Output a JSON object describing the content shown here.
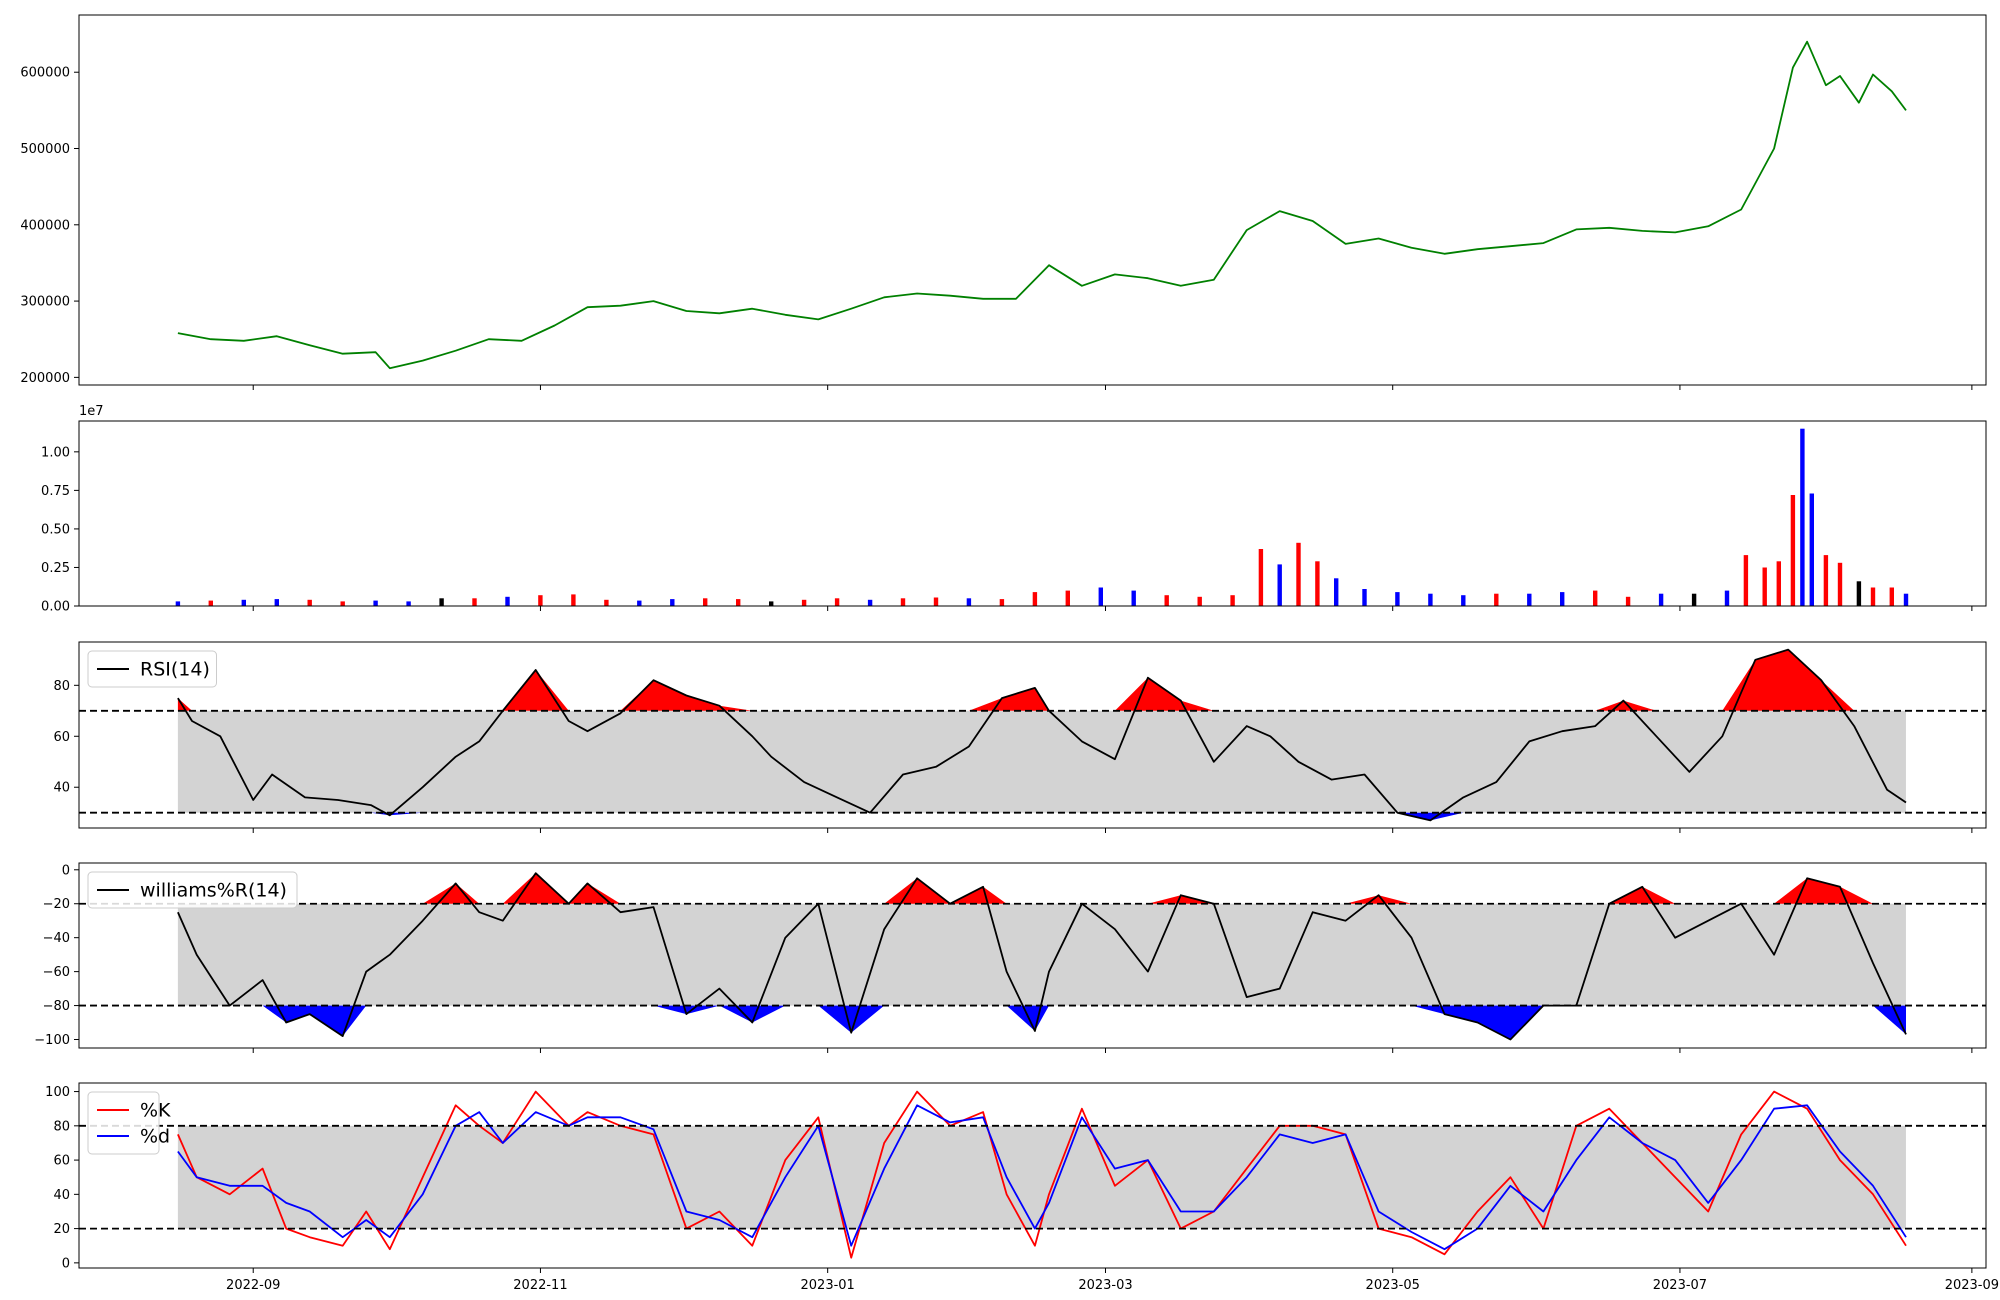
{
  "chart_data": [
    {
      "panel": "price",
      "type": "line",
      "color": "#008000",
      "ylim": [
        190000,
        675000
      ],
      "yticks": [
        200000,
        300000,
        400000,
        500000,
        600000
      ],
      "ytick_labels": [
        "200000",
        "300000",
        "400000",
        "500000",
        "600000"
      ],
      "series": [
        {
          "dates": [
            "2022-08-16",
            "2022-08-23",
            "2022-08-30",
            "2022-09-06",
            "2022-09-13",
            "2022-09-20",
            "2022-09-27",
            "2022-09-30",
            "2022-10-07",
            "2022-10-14",
            "2022-10-21",
            "2022-10-28",
            "2022-11-04",
            "2022-11-11",
            "2022-11-18",
            "2022-11-25",
            "2022-12-02",
            "2022-12-09",
            "2022-12-16",
            "2022-12-23",
            "2022-12-30",
            "2023-01-06",
            "2023-01-13",
            "2023-01-20",
            "2023-01-27",
            "2023-02-03",
            "2023-02-10",
            "2023-02-17",
            "2023-02-24",
            "2023-03-03",
            "2023-03-10",
            "2023-03-17",
            "2023-03-24",
            "2023-03-31",
            "2023-04-07",
            "2023-04-14",
            "2023-04-21",
            "2023-04-28",
            "2023-05-05",
            "2023-05-12",
            "2023-05-19",
            "2023-05-26",
            "2023-06-02",
            "2023-06-09",
            "2023-06-16",
            "2023-06-23",
            "2023-06-30",
            "2023-07-07",
            "2023-07-14",
            "2023-07-21",
            "2023-07-25",
            "2023-07-28",
            "2023-08-01",
            "2023-08-04",
            "2023-08-08",
            "2023-08-11",
            "2023-08-15",
            "2023-08-18"
          ],
          "values": [
            258000,
            250000,
            248000,
            254000,
            242000,
            231000,
            233000,
            212000,
            222000,
            235000,
            250000,
            248000,
            268000,
            292000,
            294000,
            300000,
            287000,
            284000,
            290000,
            282000,
            276000,
            290000,
            305000,
            310000,
            307000,
            303000,
            303000,
            347000,
            320000,
            335000,
            330000,
            320000,
            328000,
            393000,
            418000,
            405000,
            375000,
            382000,
            370000,
            362000,
            368000,
            372000,
            376000,
            394000,
            396000,
            392000,
            390000,
            398000,
            420000,
            500000,
            606000,
            640000,
            583000,
            595000,
            560000,
            597000,
            575000,
            550000
          ]
        }
      ]
    },
    {
      "panel": "volume",
      "type": "bar",
      "exponent_label": "1e7",
      "ylim": [
        0,
        12000000
      ],
      "yticks": [
        0,
        2500000,
        5000000,
        7500000,
        10000000
      ],
      "ytick_labels": [
        "0.00",
        "0.25",
        "0.50",
        "0.75",
        "1.00"
      ],
      "series": [
        {
          "name": "",
          "dates": [
            "2022-08-16",
            "2022-08-23",
            "2022-08-30",
            "2022-09-06",
            "2022-09-13",
            "2022-09-20",
            "2022-09-27",
            "2022-10-04",
            "2022-10-11",
            "2022-10-18",
            "2022-10-25",
            "2022-11-01",
            "2022-11-08",
            "2022-11-15",
            "2022-11-22",
            "2022-11-29",
            "2022-12-06",
            "2022-12-13",
            "2022-12-20",
            "2022-12-27",
            "2023-01-03",
            "2023-01-10",
            "2023-01-17",
            "2023-01-24",
            "2023-01-31",
            "2023-02-07",
            "2023-02-14",
            "2023-02-21",
            "2023-02-28",
            "2023-03-07",
            "2023-03-14",
            "2023-03-21",
            "2023-03-28",
            "2023-04-03",
            "2023-04-07",
            "2023-04-11",
            "2023-04-15",
            "2023-04-19",
            "2023-04-25",
            "2023-05-02",
            "2023-05-09",
            "2023-05-16",
            "2023-05-23",
            "2023-05-30",
            "2023-06-06",
            "2023-06-13",
            "2023-06-20",
            "2023-06-27",
            "2023-07-04",
            "2023-07-11",
            "2023-07-15",
            "2023-07-19",
            "2023-07-22",
            "2023-07-25",
            "2023-07-27",
            "2023-07-29",
            "2023-08-01",
            "2023-08-04",
            "2023-08-08",
            "2023-08-11",
            "2023-08-15",
            "2023-08-18"
          ],
          "values": [
            300000,
            350000,
            400000,
            450000,
            400000,
            300000,
            350000,
            300000,
            500000,
            500000,
            600000,
            700000,
            750000,
            400000,
            350000,
            450000,
            500000,
            450000,
            300000,
            400000,
            500000,
            400000,
            500000,
            550000,
            500000,
            450000,
            900000,
            1000000,
            1200000,
            1000000,
            700000,
            600000,
            700000,
            3700000,
            2700000,
            4100000,
            2900000,
            1800000,
            1100000,
            900000,
            800000,
            700000,
            800000,
            800000,
            900000,
            1000000,
            600000,
            800000,
            800000,
            1000000,
            3300000,
            2500000,
            2900000,
            7200000,
            11500000,
            7300000,
            3300000,
            2800000,
            1600000,
            1200000,
            1200000,
            800000
          ],
          "colors": [
            "blue",
            "red",
            "blue",
            "blue",
            "red",
            "red",
            "blue",
            "blue",
            "black",
            "red",
            "blue",
            "red",
            "red",
            "red",
            "blue",
            "blue",
            "red",
            "red",
            "black",
            "red",
            "red",
            "blue",
            "red",
            "red",
            "blue",
            "red",
            "red",
            "red",
            "blue",
            "blue",
            "red",
            "red",
            "red",
            "red",
            "blue",
            "red",
            "red",
            "blue",
            "blue",
            "blue",
            "blue",
            "blue",
            "red",
            "blue",
            "blue",
            "red",
            "red",
            "blue",
            "black",
            "blue",
            "red",
            "red",
            "red",
            "red",
            "blue",
            "blue",
            "red",
            "red",
            "black",
            "red",
            "red",
            "blue"
          ]
        }
      ]
    },
    {
      "panel": "rsi",
      "type": "line",
      "legend": [
        "RSI(14)"
      ],
      "legend_position": "upper-left",
      "ylim": [
        24,
        97
      ],
      "yticks": [
        40,
        60,
        80
      ],
      "ytick_labels": [
        "40",
        "60",
        "80"
      ],
      "bands": [
        30,
        70
      ],
      "series": [
        {
          "name": "RSI(14)",
          "dates": [
            "2022-08-16",
            "2022-08-19",
            "2022-08-25",
            "2022-09-01",
            "2022-09-05",
            "2022-09-12",
            "2022-09-19",
            "2022-09-26",
            "2022-09-30",
            "2022-10-07",
            "2022-10-14",
            "2022-10-19",
            "2022-10-24",
            "2022-10-31",
            "2022-11-07",
            "2022-11-11",
            "2022-11-18",
            "2022-11-25",
            "2022-12-02",
            "2022-12-09",
            "2022-12-16",
            "2022-12-20",
            "2022-12-27",
            "2023-01-03",
            "2023-01-10",
            "2023-01-17",
            "2023-01-24",
            "2023-01-31",
            "2023-02-07",
            "2023-02-14",
            "2023-02-17",
            "2023-02-24",
            "2023-03-03",
            "2023-03-10",
            "2023-03-17",
            "2023-03-24",
            "2023-03-31",
            "2023-04-05",
            "2023-04-11",
            "2023-04-18",
            "2023-04-25",
            "2023-05-02",
            "2023-05-09",
            "2023-05-16",
            "2023-05-23",
            "2023-05-30",
            "2023-06-06",
            "2023-06-13",
            "2023-06-19",
            "2023-06-26",
            "2023-07-03",
            "2023-07-10",
            "2023-07-17",
            "2023-07-24",
            "2023-07-31",
            "2023-08-07",
            "2023-08-14",
            "2023-08-18"
          ],
          "values": [
            75,
            66,
            60,
            35,
            45,
            36,
            35,
            33,
            29,
            40,
            52,
            58,
            70,
            86,
            66,
            62,
            69,
            82,
            76,
            72,
            60,
            52,
            42,
            36,
            30,
            45,
            48,
            56,
            75,
            79,
            70,
            58,
            51,
            83,
            74,
            50,
            64,
            60,
            50,
            43,
            45,
            30,
            27,
            36,
            42,
            58,
            62,
            64,
            74,
            60,
            46,
            60,
            90,
            94,
            82,
            64,
            39,
            34
          ]
        }
      ]
    },
    {
      "panel": "williams",
      "type": "line",
      "legend": [
        "williams%R(14)"
      ],
      "legend_position": "upper-left",
      "ylim": [
        -105,
        4
      ],
      "yticks": [
        -100,
        -80,
        -60,
        -40,
        -20,
        0
      ],
      "ytick_labels": [
        "−100",
        "−80",
        "−60",
        "−40",
        "−20",
        "0"
      ],
      "bands": [
        -80,
        -20
      ],
      "series": [
        {
          "name": "williams%R(14)",
          "dates": [
            "2022-08-16",
            "2022-08-20",
            "2022-08-27",
            "2022-09-03",
            "2022-09-08",
            "2022-09-13",
            "2022-09-20",
            "2022-09-25",
            "2022-09-30",
            "2022-10-07",
            "2022-10-14",
            "2022-10-19",
            "2022-10-24",
            "2022-10-31",
            "2022-11-07",
            "2022-11-11",
            "2022-11-18",
            "2022-11-25",
            "2022-12-02",
            "2022-12-09",
            "2022-12-16",
            "2022-12-23",
            "2022-12-30",
            "2023-01-06",
            "2023-01-13",
            "2023-01-20",
            "2023-01-27",
            "2023-02-03",
            "2023-02-08",
            "2023-02-14",
            "2023-02-17",
            "2023-02-24",
            "2023-03-03",
            "2023-03-10",
            "2023-03-17",
            "2023-03-24",
            "2023-03-31",
            "2023-04-07",
            "2023-04-14",
            "2023-04-21",
            "2023-04-28",
            "2023-05-05",
            "2023-05-12",
            "2023-05-19",
            "2023-05-26",
            "2023-06-02",
            "2023-06-09",
            "2023-06-16",
            "2023-06-23",
            "2023-06-30",
            "2023-07-07",
            "2023-07-14",
            "2023-07-21",
            "2023-07-28",
            "2023-08-04",
            "2023-08-11",
            "2023-08-18"
          ],
          "values": [
            -25,
            -50,
            -80,
            -65,
            -90,
            -85,
            -98,
            -60,
            -50,
            -30,
            -8,
            -25,
            -30,
            -2,
            -20,
            -8,
            -25,
            -22,
            -85,
            -70,
            -90,
            -40,
            -20,
            -96,
            -35,
            -5,
            -20,
            -10,
            -60,
            -95,
            -60,
            -20,
            -35,
            -60,
            -15,
            -20,
            -75,
            -70,
            -25,
            -30,
            -15,
            -40,
            -85,
            -90,
            -100,
            -80,
            -80,
            -20,
            -10,
            -40,
            -30,
            -20,
            -50,
            -5,
            -10,
            -55,
            -97
          ]
        }
      ]
    },
    {
      "panel": "stochastic",
      "type": "line",
      "legend": [
        "%K",
        "%d"
      ],
      "legend_position": "upper-left",
      "ylim": [
        -3,
        105
      ],
      "yticks": [
        0,
        20,
        40,
        60,
        80,
        100
      ],
      "ytick_labels": [
        "0",
        "20",
        "40",
        "60",
        "80",
        "100"
      ],
      "bands": [
        20,
        80
      ],
      "x_tick_labels": [
        "2022-09",
        "2022-11",
        "2023-01",
        "2023-03",
        "2023-05",
        "2023-07",
        "2023-09"
      ],
      "x_tick_dates": [
        "2022-09-01",
        "2022-11-01",
        "2023-01-01",
        "2023-03-01",
        "2023-05-01",
        "2023-07-01",
        "2023-09-01"
      ],
      "series": [
        {
          "name": "%K",
          "color": "red",
          "dates": [
            "2022-08-16",
            "2022-08-20",
            "2022-08-27",
            "2022-09-03",
            "2022-09-08",
            "2022-09-13",
            "2022-09-20",
            "2022-09-25",
            "2022-09-30",
            "2022-10-07",
            "2022-10-14",
            "2022-10-19",
            "2022-10-24",
            "2022-10-31",
            "2022-11-07",
            "2022-11-11",
            "2022-11-18",
            "2022-11-25",
            "2022-12-02",
            "2022-12-09",
            "2022-12-16",
            "2022-12-23",
            "2022-12-30",
            "2023-01-06",
            "2023-01-13",
            "2023-01-20",
            "2023-01-27",
            "2023-02-03",
            "2023-02-08",
            "2023-02-14",
            "2023-02-17",
            "2023-02-24",
            "2023-03-03",
            "2023-03-10",
            "2023-03-17",
            "2023-03-24",
            "2023-03-31",
            "2023-04-07",
            "2023-04-14",
            "2023-04-21",
            "2023-04-28",
            "2023-05-05",
            "2023-05-12",
            "2023-05-19",
            "2023-05-26",
            "2023-06-02",
            "2023-06-09",
            "2023-06-16",
            "2023-06-23",
            "2023-06-30",
            "2023-07-07",
            "2023-07-14",
            "2023-07-21",
            "2023-07-28",
            "2023-08-04",
            "2023-08-11",
            "2023-08-18"
          ],
          "values": [
            75,
            50,
            40,
            55,
            20,
            15,
            10,
            30,
            8,
            50,
            92,
            80,
            70,
            100,
            80,
            88,
            80,
            75,
            20,
            30,
            10,
            60,
            85,
            3,
            70,
            100,
            80,
            88,
            40,
            10,
            40,
            90,
            45,
            60,
            20,
            30,
            55,
            80,
            80,
            75,
            20,
            15,
            5,
            30,
            50,
            20,
            80,
            90,
            70,
            50,
            30,
            75,
            100,
            90,
            60,
            40,
            10
          ]
        },
        {
          "name": "%d",
          "color": "blue",
          "dates": [
            "2022-08-16",
            "2022-08-20",
            "2022-08-27",
            "2022-09-03",
            "2022-09-08",
            "2022-09-13",
            "2022-09-20",
            "2022-09-25",
            "2022-09-30",
            "2022-10-07",
            "2022-10-14",
            "2022-10-19",
            "2022-10-24",
            "2022-10-31",
            "2022-11-07",
            "2022-11-11",
            "2022-11-18",
            "2022-11-25",
            "2022-12-02",
            "2022-12-09",
            "2022-12-16",
            "2022-12-23",
            "2022-12-30",
            "2023-01-06",
            "2023-01-13",
            "2023-01-20",
            "2023-01-27",
            "2023-02-03",
            "2023-02-08",
            "2023-02-14",
            "2023-02-17",
            "2023-02-24",
            "2023-03-03",
            "2023-03-10",
            "2023-03-17",
            "2023-03-24",
            "2023-03-31",
            "2023-04-07",
            "2023-04-14",
            "2023-04-21",
            "2023-04-28",
            "2023-05-05",
            "2023-05-12",
            "2023-05-19",
            "2023-05-26",
            "2023-06-02",
            "2023-06-09",
            "2023-06-16",
            "2023-06-23",
            "2023-06-30",
            "2023-07-07",
            "2023-07-14",
            "2023-07-21",
            "2023-07-28",
            "2023-08-04",
            "2023-08-11",
            "2023-08-18"
          ],
          "values": [
            65,
            50,
            45,
            45,
            35,
            30,
            15,
            25,
            15,
            40,
            80,
            88,
            70,
            88,
            80,
            85,
            85,
            78,
            30,
            25,
            15,
            50,
            80,
            10,
            55,
            92,
            82,
            85,
            50,
            20,
            35,
            85,
            55,
            60,
            30,
            30,
            50,
            75,
            70,
            75,
            30,
            18,
            8,
            20,
            45,
            30,
            60,
            85,
            70,
            60,
            35,
            60,
            90,
            92,
            65,
            45,
            15
          ]
        }
      ]
    }
  ]
}
